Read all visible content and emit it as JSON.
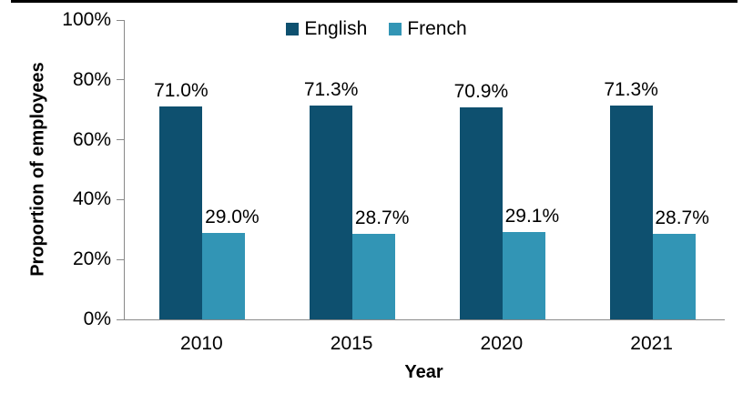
{
  "chart_data": {
    "type": "bar",
    "title": "",
    "categories": [
      "2010",
      "2015",
      "2020",
      "2021"
    ],
    "series": [
      {
        "name": "English",
        "color": "#0E506F",
        "values": [
          71.0,
          71.3,
          70.9,
          71.3
        ],
        "data_labels": [
          "71.0%",
          "71.3%",
          "70.9%",
          "71.3%"
        ]
      },
      {
        "name": "French",
        "color": "#3295B5",
        "values": [
          29.0,
          28.7,
          29.1,
          28.7
        ],
        "data_labels": [
          "29.0%",
          "28.7%",
          "29.1%",
          "28.7%"
        ]
      }
    ],
    "xlabel": "Year",
    "ylabel": "Proportion of employees",
    "ylim": [
      0,
      100
    ],
    "ytick_labels": [
      "0%",
      "20%",
      "40%",
      "60%",
      "80%",
      "100%"
    ],
    "legend_position": "top-center",
    "grid": false,
    "axis_color": "#898989",
    "text_color": "#000000",
    "border_color": "#000000"
  }
}
